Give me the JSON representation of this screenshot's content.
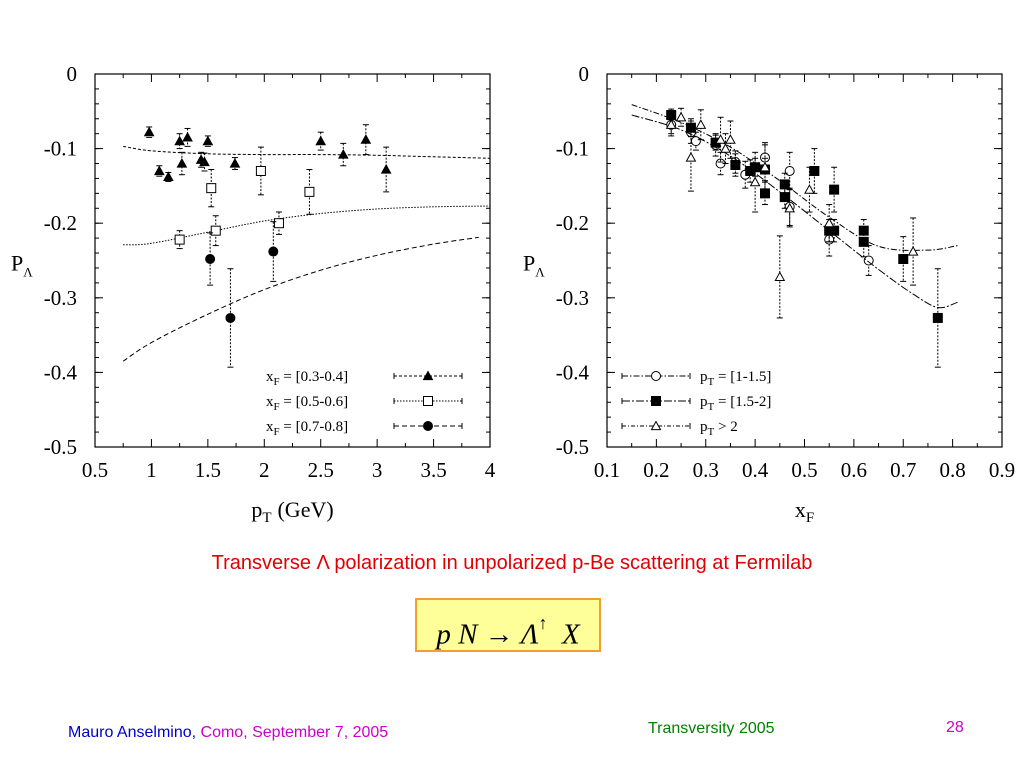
{
  "caption": "Transverse Λ polarization in unpolarized p-Be scattering at Fermilab",
  "formula": {
    "lhs": "p N → Λ",
    "arrow_sup": "↑",
    "rhs": "X"
  },
  "footer": {
    "author": "Mauro Anselmino,",
    "place": "Como,",
    "date": "September 7, 2005",
    "conference": "Transversity 2005",
    "page": "28"
  },
  "colors": {
    "caption": "#e00000",
    "author": "#0000cc",
    "place_date": "#cc00cc",
    "conference": "#008000",
    "formula_bg": "#ffff99",
    "formula_border": "#f0a030"
  },
  "chart_data": [
    {
      "type": "scatter",
      "xlabel": "p",
      "xlabel_sub": "T",
      "xlabel_unit": "(GeV)",
      "ylabel": "P",
      "ylabel_sub": "Λ",
      "xlim": [
        0.5,
        4
      ],
      "ylim": [
        -0.5,
        0
      ],
      "xticks": [
        0.5,
        1,
        1.5,
        2,
        2.5,
        3,
        3.5,
        4
      ],
      "xticklabels": [
        "0.5",
        "1",
        "1.5",
        "2",
        "2.5",
        "3",
        "3.5",
        "4"
      ],
      "yticks": [
        0,
        -0.1,
        -0.2,
        -0.3,
        -0.4,
        -0.5
      ],
      "yticklabels": [
        "0",
        "-0.1",
        "-0.2",
        "-0.3",
        "-0.4",
        "-0.5"
      ],
      "legend_position": "bottom-right",
      "series": [
        {
          "name_main": "x",
          "name_sub": "F",
          "name_rest": " = [0.3-0.4]",
          "marker": "triangle-filled",
          "line": "dashed-fine",
          "points": [
            [
              0.98,
              -0.078,
              0.007
            ],
            [
              1.07,
              -0.13,
              0.007
            ],
            [
              1.15,
              -0.138,
              0.006
            ],
            [
              1.25,
              -0.09,
              0.01
            ],
            [
              1.27,
              -0.12,
              0.015
            ],
            [
              1.32,
              -0.085,
              0.012
            ],
            [
              1.44,
              -0.115,
              0.01
            ],
            [
              1.47,
              -0.118,
              0.012
            ],
            [
              1.5,
              -0.09,
              0.007
            ],
            [
              1.74,
              -0.12,
              0.008
            ],
            [
              2.5,
              -0.09,
              0.012
            ],
            [
              2.7,
              -0.108,
              0.015
            ],
            [
              2.9,
              -0.088,
              0.02
            ],
            [
              3.08,
              -0.128,
              0.03
            ]
          ],
          "fit": [
            [
              0.75,
              -0.097
            ],
            [
              1.0,
              -0.103
            ],
            [
              1.5,
              -0.107
            ],
            [
              2.0,
              -0.108
            ],
            [
              2.5,
              -0.108
            ],
            [
              3.0,
              -0.109
            ],
            [
              3.5,
              -0.111
            ],
            [
              4.0,
              -0.113
            ]
          ]
        },
        {
          "name_main": "x",
          "name_sub": "F",
          "name_rest": " = [0.5-0.6]",
          "marker": "square-open",
          "line": "dotted",
          "points": [
            [
              1.25,
              -0.222,
              0.012
            ],
            [
              1.53,
              -0.153,
              0.025
            ],
            [
              1.57,
              -0.21,
              0.02
            ],
            [
              1.97,
              -0.13,
              0.032
            ],
            [
              2.13,
              -0.2,
              0.015
            ],
            [
              2.4,
              -0.158,
              0.03
            ]
          ],
          "fit": [
            [
              0.75,
              -0.229
            ],
            [
              1.0,
              -0.227
            ],
            [
              1.5,
              -0.212
            ],
            [
              2.0,
              -0.197
            ],
            [
              2.5,
              -0.187
            ],
            [
              3.0,
              -0.181
            ],
            [
              3.5,
              -0.178
            ],
            [
              4.0,
              -0.177
            ]
          ]
        },
        {
          "name_main": "x",
          "name_sub": "F",
          "name_rest": " = [0.7-0.8]",
          "marker": "circle-filled",
          "line": "dashed",
          "points": [
            [
              1.52,
              -0.248,
              0.035
            ],
            [
              1.7,
              -0.327,
              0.066
            ],
            [
              2.08,
              -0.238,
              0.04
            ]
          ],
          "fit": [
            [
              0.75,
              -0.385
            ],
            [
              1.0,
              -0.36
            ],
            [
              1.5,
              -0.322
            ],
            [
              2.0,
              -0.289
            ],
            [
              2.5,
              -0.263
            ],
            [
              3.0,
              -0.243
            ],
            [
              3.5,
              -0.228
            ],
            [
              3.9,
              -0.219
            ]
          ]
        }
      ]
    },
    {
      "type": "scatter",
      "xlabel": "x",
      "xlabel_sub": "F",
      "ylabel": "P",
      "ylabel_sub": "Λ",
      "xlim": [
        0.1,
        0.9
      ],
      "ylim": [
        -0.5,
        0
      ],
      "xticks": [
        0.1,
        0.2,
        0.3,
        0.4,
        0.5,
        0.6,
        0.7,
        0.8,
        0.9
      ],
      "xticklabels": [
        "0.1",
        "0.2",
        "0.3",
        "0.4",
        "0.5",
        "0.6",
        "0.7",
        "0.8",
        "0.9"
      ],
      "yticks": [
        0,
        -0.1,
        -0.2,
        -0.3,
        -0.4,
        -0.5
      ],
      "yticklabels": [
        "0",
        "-0.1",
        "-0.2",
        "-0.3",
        "-0.4",
        "-0.5"
      ],
      "legend_position": "bottom-left",
      "series": [
        {
          "name_main": "p",
          "name_sub": "T",
          "name_rest": " = [1-1.5]",
          "marker": "circle-open",
          "line": "dash-dot",
          "points": [
            [
              0.23,
              -0.068,
              0.012
            ],
            [
              0.27,
              -0.078,
              0.015
            ],
            [
              0.28,
              -0.09,
              0.012
            ],
            [
              0.32,
              -0.095,
              0.015
            ],
            [
              0.33,
              -0.12,
              0.015
            ],
            [
              0.36,
              -0.118,
              0.015
            ],
            [
              0.38,
              -0.135,
              0.018
            ],
            [
              0.42,
              -0.112,
              0.02
            ],
            [
              0.47,
              -0.13,
              0.025
            ],
            [
              0.47,
              -0.178,
              0.025
            ],
            [
              0.55,
              -0.222,
              0.022
            ],
            [
              0.63,
              -0.25,
              0.02
            ]
          ],
          "fit": [
            [
              0.15,
              -0.041
            ],
            [
              0.25,
              -0.065
            ],
            [
              0.35,
              -0.098
            ],
            [
              0.45,
              -0.143
            ],
            [
              0.55,
              -0.192
            ],
            [
              0.65,
              -0.231
            ],
            [
              0.75,
              -0.236
            ],
            [
              0.81,
              -0.23
            ]
          ]
        },
        {
          "name_main": "p",
          "name_sub": "T",
          "name_rest": " = [1.5-2]",
          "marker": "square-filled",
          "line": "dash-dot-long",
          "points": [
            [
              0.23,
              -0.055,
              0.008
            ],
            [
              0.27,
              -0.072,
              0.012
            ],
            [
              0.32,
              -0.092,
              0.01
            ],
            [
              0.36,
              -0.122,
              0.015
            ],
            [
              0.39,
              -0.13,
              0.015
            ],
            [
              0.4,
              -0.125,
              0.012
            ],
            [
              0.42,
              -0.16,
              0.015
            ],
            [
              0.42,
              -0.128,
              0.015
            ],
            [
              0.46,
              -0.148,
              0.015
            ],
            [
              0.46,
              -0.165,
              0.015
            ],
            [
              0.52,
              -0.13,
              0.03
            ],
            [
              0.55,
              -0.21,
              0.015
            ],
            [
              0.56,
              -0.155,
              0.03
            ],
            [
              0.56,
              -0.21,
              0.015
            ],
            [
              0.62,
              -0.21,
              0.015
            ],
            [
              0.62,
              -0.225,
              0.02
            ],
            [
              0.7,
              -0.248,
              0.03
            ],
            [
              0.77,
              -0.327,
              0.066
            ]
          ],
          "fit": [
            [
              0.15,
              -0.055
            ],
            [
              0.25,
              -0.075
            ],
            [
              0.35,
              -0.11
            ],
            [
              0.45,
              -0.158
            ],
            [
              0.55,
              -0.21
            ],
            [
              0.65,
              -0.262
            ],
            [
              0.72,
              -0.295
            ],
            [
              0.77,
              -0.313
            ],
            [
              0.81,
              -0.306
            ]
          ]
        },
        {
          "name_main": "p",
          "name_sub": "T",
          "name_rest": " > 2",
          "marker": "triangle-open",
          "line": "dash-dot-fine",
          "points": [
            [
              0.23,
              -0.068,
              0.015
            ],
            [
              0.25,
              -0.058,
              0.012
            ],
            [
              0.27,
              -0.112,
              0.045
            ],
            [
              0.29,
              -0.068,
              0.02
            ],
            [
              0.33,
              -0.088,
              0.03
            ],
            [
              0.34,
              -0.1,
              0.02
            ],
            [
              0.35,
              -0.088,
              0.025
            ],
            [
              0.4,
              -0.145,
              0.04
            ],
            [
              0.42,
              -0.125,
              0.03
            ],
            [
              0.45,
              -0.272,
              0.055
            ],
            [
              0.47,
              -0.18,
              0.025
            ],
            [
              0.51,
              -0.155,
              0.03
            ],
            [
              0.55,
              -0.2,
              0.025
            ],
            [
              0.72,
              -0.238,
              0.045
            ]
          ]
        }
      ]
    }
  ]
}
